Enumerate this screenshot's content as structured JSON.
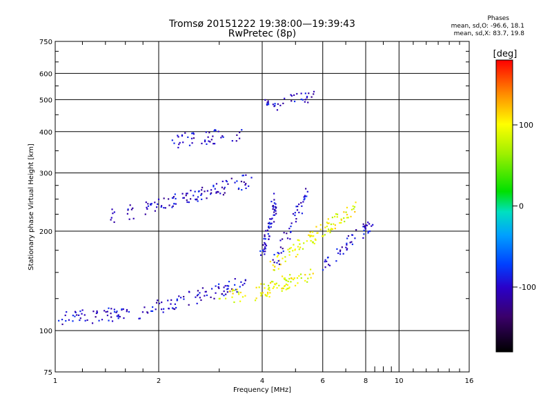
{
  "title_line1": "Tromsø 20151222 19:38:00—19:39:43",
  "title_line2": "RwPretec (8p)",
  "stats": {
    "heading": "Phases",
    "line_o": "mean, sd,O: -96.6, 18.1",
    "line_x": "mean, sd,X:  83.7, 19.8"
  },
  "colorbar": {
    "label": "[deg]",
    "tick_labels": [
      "100",
      "0",
      "-100"
    ],
    "tick_values": [
      100,
      0,
      -100
    ],
    "range": [
      -180,
      180
    ]
  },
  "chart_data": {
    "type": "scatter",
    "xlabel": "Frequency [MHz]",
    "ylabel": "Stationary phase Virtual Height [km]",
    "xscale": "log",
    "yscale": "log",
    "xlim": [
      1,
      16
    ],
    "ylim": [
      75,
      750
    ],
    "xticks": [
      1,
      2,
      4,
      6,
      8,
      10,
      16
    ],
    "xtick_labels": [
      "1",
      "2",
      "4",
      "6",
      "8",
      "10",
      "16"
    ],
    "yticks": [
      75,
      100,
      200,
      300,
      400,
      500,
      600,
      750
    ],
    "ytick_labels": [
      "75",
      "100",
      "200",
      "300",
      "400",
      "500",
      "600",
      "750"
    ],
    "grid": true,
    "point_color_encodes": "phase [deg]",
    "traces": [
      {
        "x_start": 1.0,
        "x_end": 1.85,
        "y_start": 108,
        "y_end": 115,
        "phase": -100,
        "count": 60
      },
      {
        "x_start": 1.85,
        "x_end": 3.6,
        "y_start": 115,
        "y_end": 140,
        "phase": -100,
        "count": 80
      },
      {
        "x_start": 3.0,
        "x_end": 4.8,
        "y_start": 125,
        "y_end": 135,
        "phase": 95,
        "count": 40
      },
      {
        "x_start": 4.0,
        "x_end": 5.6,
        "y_start": 133,
        "y_end": 148,
        "phase": 95,
        "count": 50
      },
      {
        "x_start": 4.2,
        "x_end": 6.5,
        "y_start": 155,
        "y_end": 215,
        "phase": 95,
        "count": 60
      },
      {
        "x_start": 5.5,
        "x_end": 7.5,
        "y_start": 190,
        "y_end": 235,
        "phase": 95,
        "count": 40
      },
      {
        "x_start": 1.4,
        "x_end": 2.1,
        "y_start": 220,
        "y_end": 240,
        "phase": -100,
        "count": 30
      },
      {
        "x_start": 2.0,
        "x_end": 3.7,
        "y_start": 240,
        "y_end": 285,
        "phase": -100,
        "count": 80
      },
      {
        "x_start": 2.2,
        "x_end": 3.5,
        "y_start": 375,
        "y_end": 395,
        "phase": -100,
        "count": 45
      },
      {
        "x_start": 4.0,
        "x_end": 4.4,
        "y_start": 170,
        "y_end": 255,
        "phase": -100,
        "count": 60
      },
      {
        "x_start": 4.3,
        "x_end": 5.4,
        "y_start": 155,
        "y_end": 265,
        "phase": -100,
        "count": 45
      },
      {
        "x_start": 4.0,
        "x_end": 5.7,
        "y_start": 480,
        "y_end": 505,
        "phase": -100,
        "count": 35
      },
      {
        "x_start": 6.0,
        "x_end": 8.4,
        "y_start": 155,
        "y_end": 215,
        "phase": -100,
        "count": 50
      }
    ]
  }
}
